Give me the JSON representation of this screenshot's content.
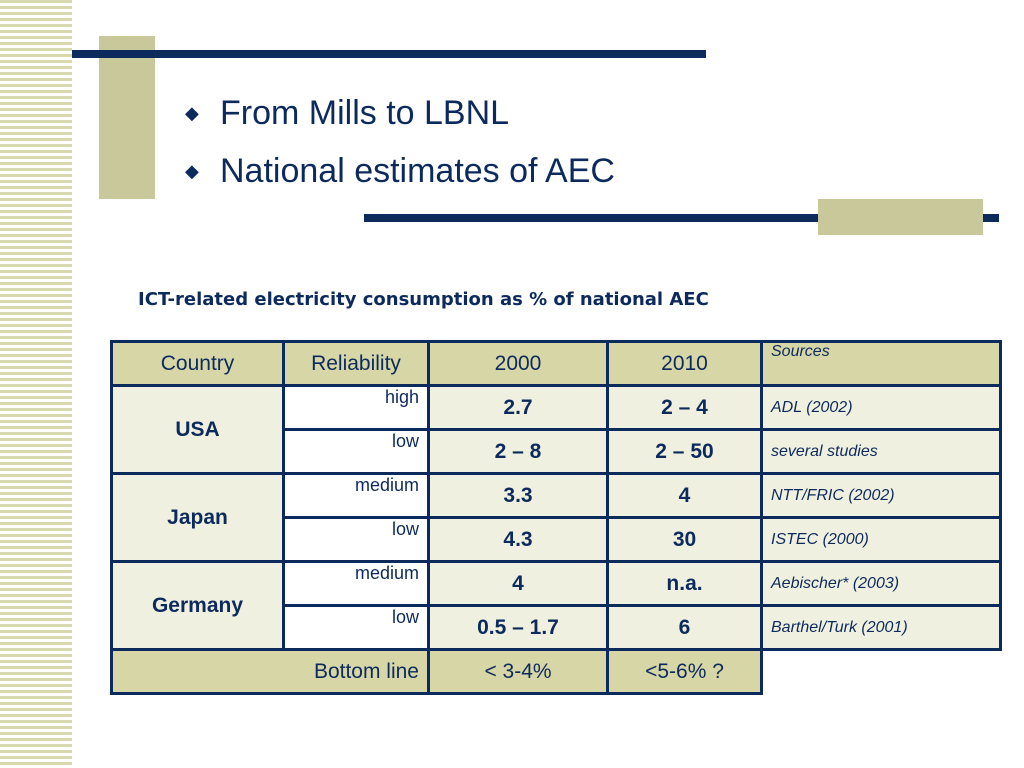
{
  "bullets": [
    "From Mills to LBNL",
    "National estimates of AEC"
  ],
  "caption": "ICT-related electricity consumption as % of national AEC",
  "table": {
    "headers": [
      "Country",
      "Reliability",
      "2000",
      "2010",
      "Sources"
    ],
    "groups": [
      {
        "country": "USA",
        "rows": [
          {
            "reliability": "high",
            "v2000": "2.7",
            "v2010": "2 – 4",
            "source": "ADL (2002)"
          },
          {
            "reliability": "low",
            "v2000": "2 – 8",
            "v2010": "2 – 50",
            "source": "several studies"
          }
        ]
      },
      {
        "country": "Japan",
        "rows": [
          {
            "reliability": "medium",
            "v2000": "3.3",
            "v2010": "4",
            "source": "NTT/FRIC (2002)"
          },
          {
            "reliability": "low",
            "v2000": "4.3",
            "v2010": "30",
            "source": "ISTEC (2000)"
          }
        ]
      },
      {
        "country": "Germany",
        "rows": [
          {
            "reliability": "medium",
            "v2000": "4",
            "v2010": "n.a.",
            "source": "Aebischer* (2003)"
          },
          {
            "reliability": "low",
            "v2000": "0.5 – 1.7",
            "v2010": "6",
            "source": "Barthel/Turk (2001)"
          }
        ]
      }
    ],
    "bottom": {
      "label": "Bottom line",
      "v2000": "< 3-4%",
      "v2010": "<5-6% ?"
    }
  },
  "colors": {
    "navy": "#0d2a5c",
    "olive": "#c8c89a",
    "header_fill": "#d6d6a6",
    "cell_fill": "#f0f0e0"
  }
}
